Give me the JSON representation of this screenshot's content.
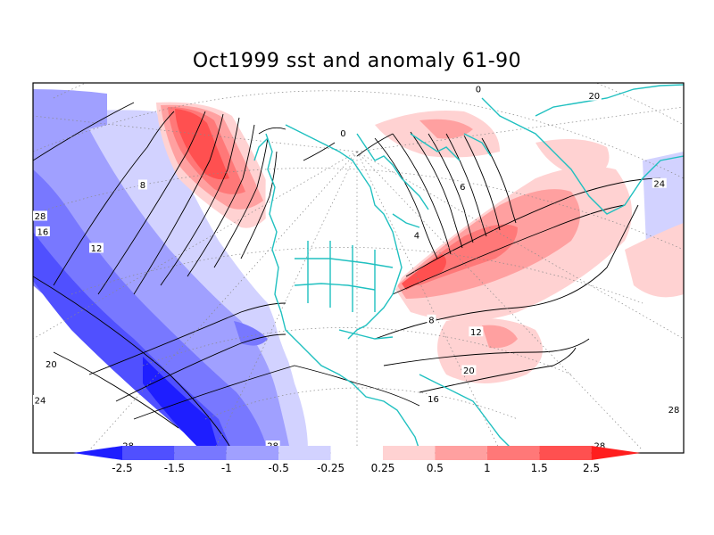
{
  "title": "Oct1999 sst and anomaly 61-90",
  "colorbar": {
    "labels": [
      "-2.5",
      "-1.5",
      "-1",
      "-0.5",
      "-0.25",
      "0.25",
      "0.5",
      "1",
      "1.5",
      "2.5"
    ],
    "colors": [
      "#1e1eff",
      "#5050ff",
      "#7878ff",
      "#a0a0ff",
      "#d2d2ff",
      "#ffffff",
      "#ffd2d2",
      "#ffa0a0",
      "#ff7878",
      "#ff5050",
      "#ff1e1e"
    ]
  },
  "contour_labels": [
    {
      "text": "28",
      "lon": -165,
      "lat": 20
    },
    {
      "text": "16",
      "lon": -140,
      "lat": 44
    },
    {
      "text": "12",
      "lon": -130,
      "lat": 47
    },
    {
      "text": "8",
      "lon": -130,
      "lat": 58
    },
    {
      "text": "20",
      "lon": -125,
      "lat": 30
    },
    {
      "text": "24",
      "lon": -125,
      "lat": 24
    },
    {
      "text": "0",
      "lon": -80,
      "lat": 75
    },
    {
      "text": "0",
      "lon": -20,
      "lat": 80
    },
    {
      "text": "4",
      "lon": -60,
      "lat": 60
    },
    {
      "text": "16",
      "lon": -62,
      "lat": 37
    },
    {
      "text": "20",
      "lon": -55,
      "lat": 40
    },
    {
      "text": "12",
      "lon": -52,
      "lat": 45
    },
    {
      "text": "24",
      "lon": -5,
      "lat": 50
    },
    {
      "text": "28",
      "lon": -40,
      "lat": 22
    },
    {
      "text": "28",
      "lon": -10,
      "lat": 10
    },
    {
      "text": "28",
      "lon": -105,
      "lat": 14
    },
    {
      "text": "28",
      "lon": -85,
      "lat": 6
    },
    {
      "text": "20",
      "lon": 0,
      "lat": 65
    },
    {
      "text": "8",
      "lon": -60,
      "lat": 48
    },
    {
      "text": "6",
      "lon": -45,
      "lat": 65
    }
  ]
}
